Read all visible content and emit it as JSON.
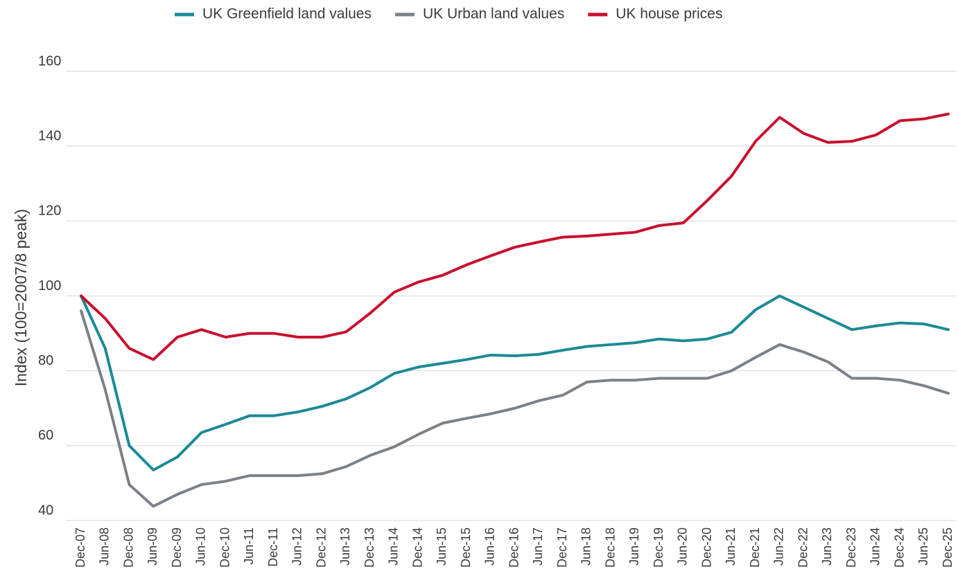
{
  "chart_data": {
    "type": "line",
    "y_label": "Index (100=2007/8 peak)",
    "categories": [
      "Dec-07",
      "Jun-08",
      "Dec-08",
      "Jun-09",
      "Dec-09",
      "Jun-10",
      "Dec-10",
      "Jun-11",
      "Dec-11",
      "Jun-12",
      "Dec-12",
      "Jun-13",
      "Dec-13",
      "Jun-14",
      "Dec-14",
      "Jun-15",
      "Dec-15",
      "Jun-16",
      "Dec-16",
      "Jun-17",
      "Dec-17",
      "Jun-18",
      "Dec-18",
      "Jun-19",
      "Dec-19",
      "Jun-20",
      "Dec-20",
      "Jun-21",
      "Dec-21",
      "Jun-22",
      "Dec-22",
      "Jun-23",
      "Dec-23",
      "Jun-24",
      "Dec-24",
      "Jun-25",
      "Dec-25"
    ],
    "series": [
      {
        "name": "UK Greenfield land values",
        "color": "#1b8a96",
        "values": [
          100,
          86,
          60,
          53.5,
          57,
          63.5,
          65.7,
          68,
          68,
          69,
          70.5,
          72.5,
          75.5,
          79.3,
          81,
          82,
          83,
          84.2,
          84,
          84.4,
          85.5,
          86.5,
          87,
          87.5,
          88.5,
          88,
          88.5,
          90.3,
          96.3,
          100,
          97,
          94,
          91,
          92,
          92.8,
          92.5,
          91
        ]
      },
      {
        "name": "UK Urban land values",
        "color": "#7b8089",
        "values": [
          96,
          75,
          49.6,
          43.8,
          47,
          49.6,
          50.5,
          52,
          52,
          52,
          52.5,
          54.4,
          57.4,
          59.7,
          63,
          66,
          67.3,
          68.5,
          70,
          72,
          73.5,
          77,
          77.5,
          77.5,
          78,
          78,
          78,
          80,
          83.6,
          87,
          85,
          82.4,
          78,
          78,
          77.5,
          76,
          74
        ]
      },
      {
        "name": "UK house prices",
        "color": "#c8102e",
        "values": [
          100,
          94,
          86,
          83,
          89,
          91,
          89,
          90,
          90,
          89,
          89,
          90.4,
          95.4,
          101,
          103.7,
          105.5,
          108.3,
          110.7,
          113,
          114.4,
          115.7,
          116,
          116.5,
          117,
          118.8,
          119.5,
          125.5,
          132,
          141.3,
          147.7,
          143.4,
          141,
          141.3,
          143,
          146.8,
          147.3,
          148.6
        ]
      }
    ],
    "ylim": [
      40,
      160
    ],
    "yticks": [
      40,
      60,
      80,
      100,
      120,
      140,
      160
    ],
    "grid": true
  }
}
